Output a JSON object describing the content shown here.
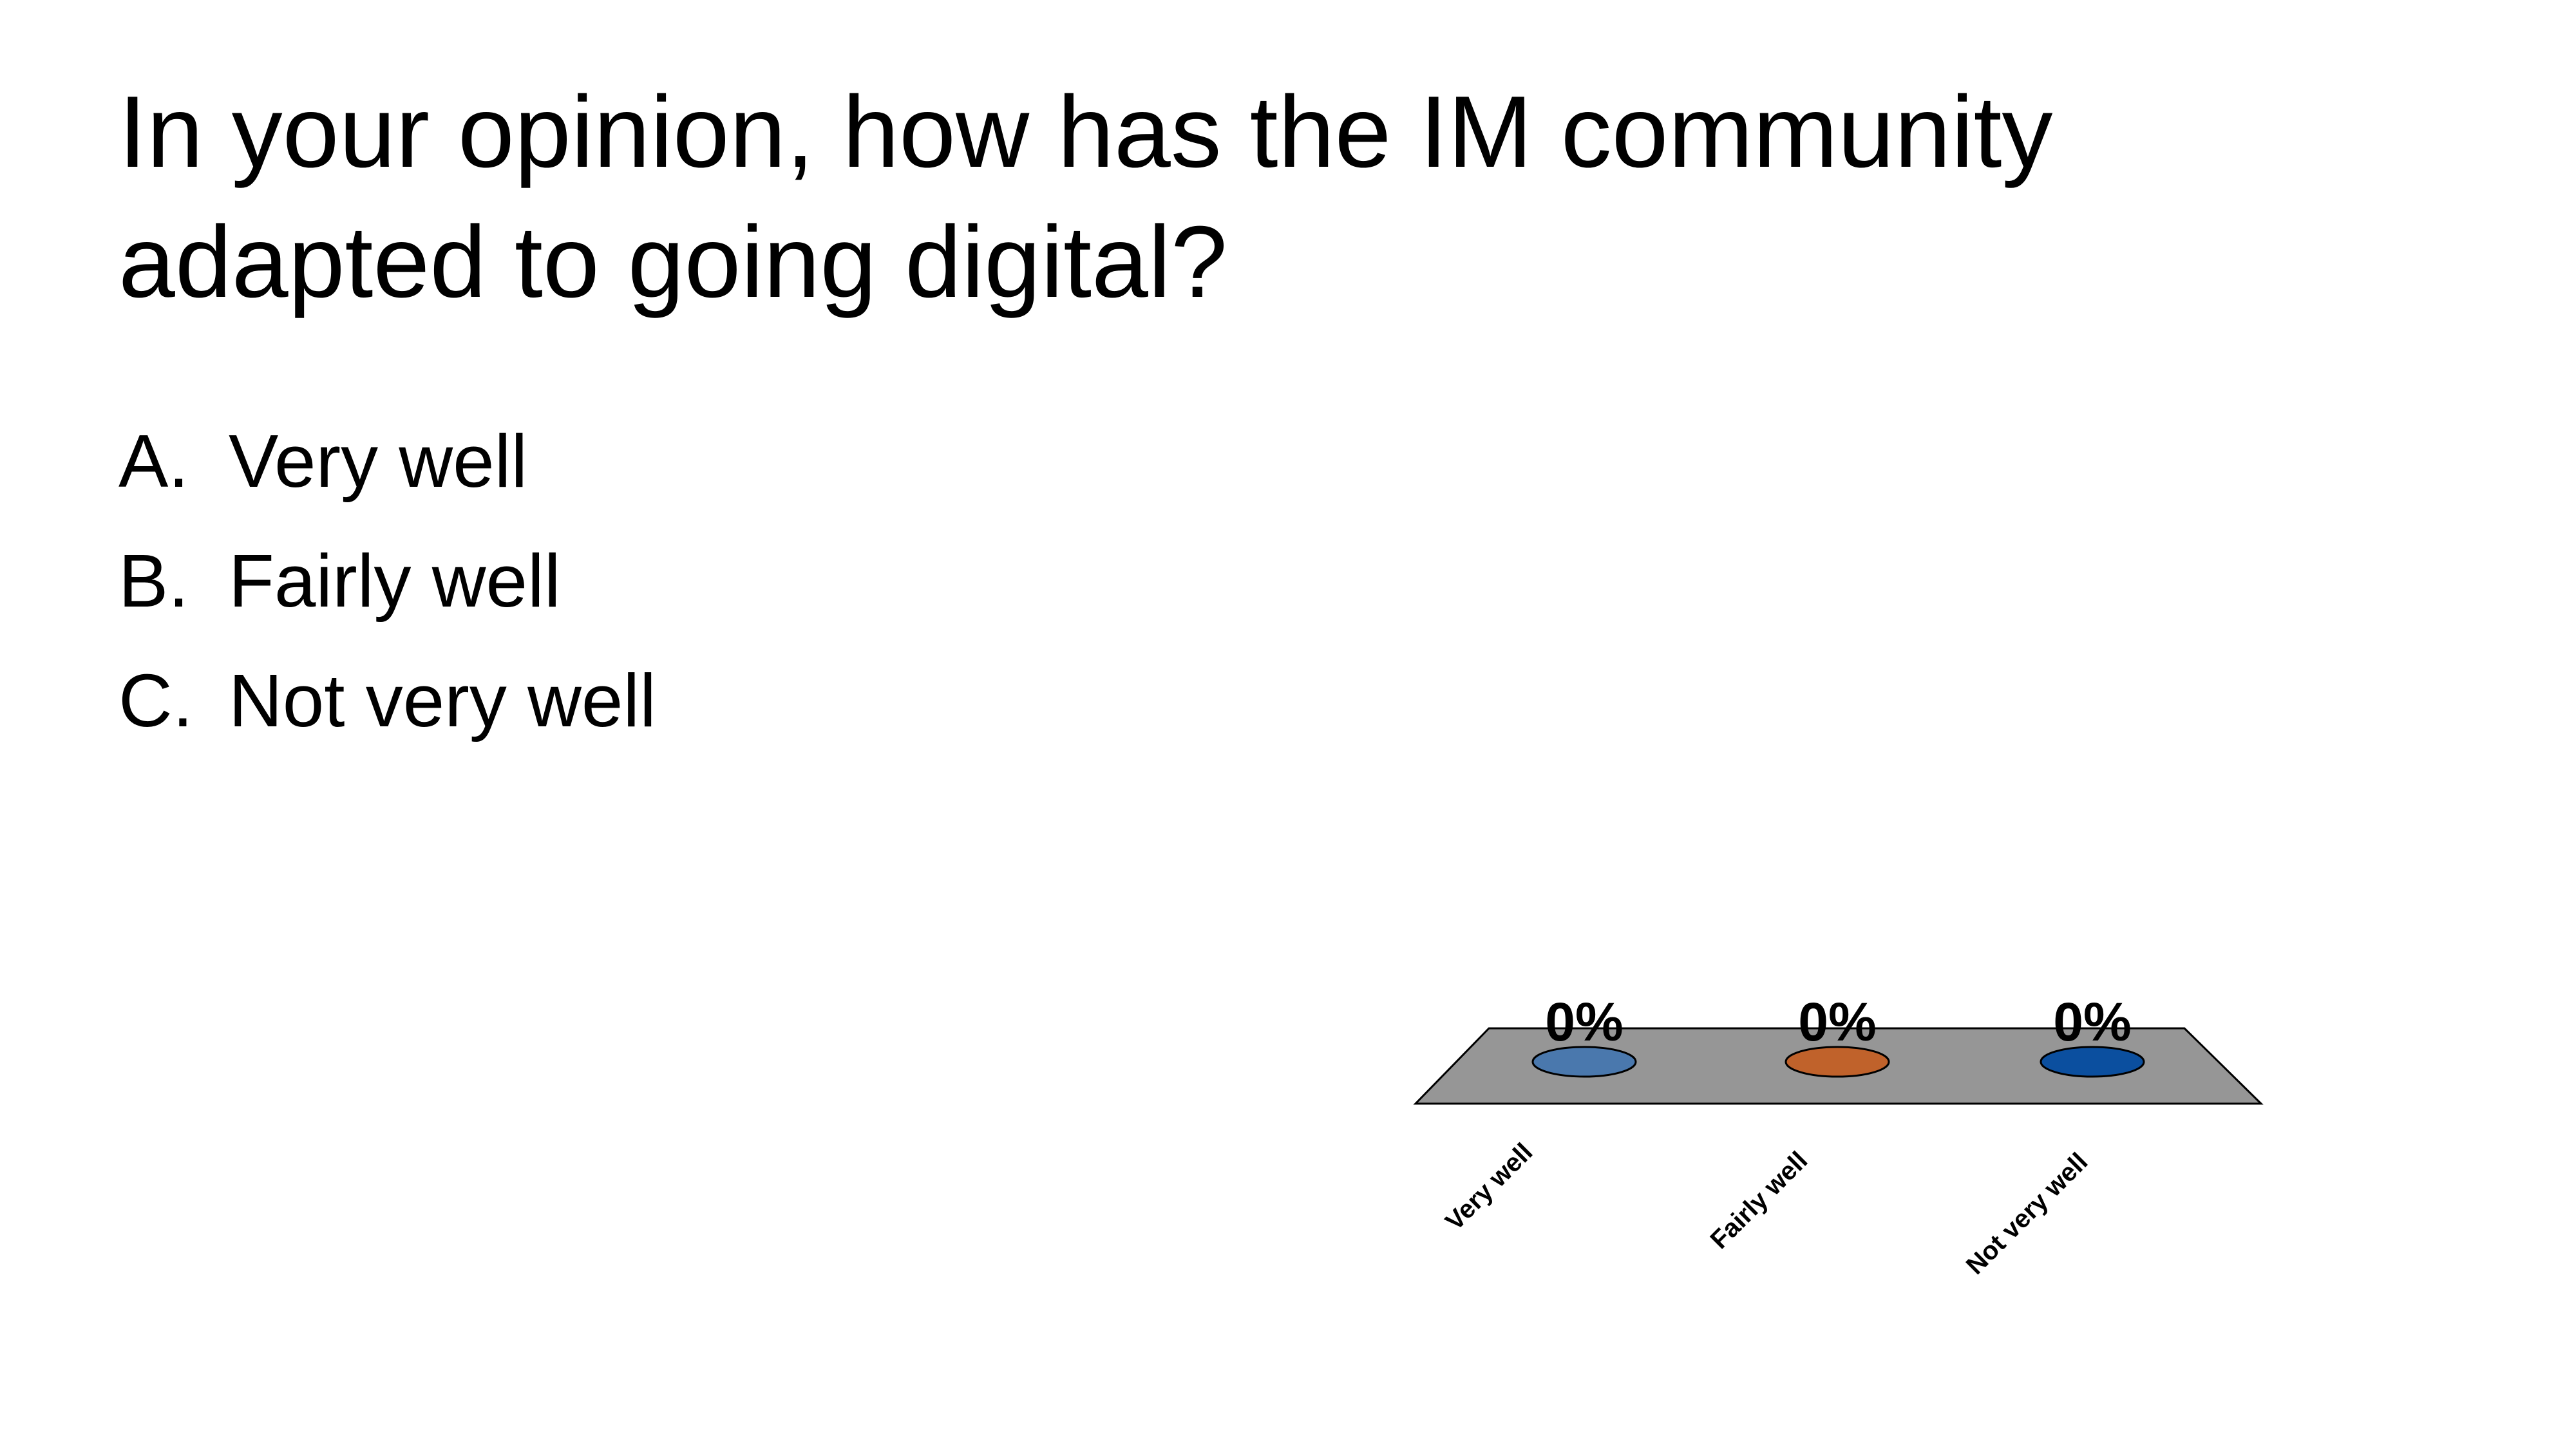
{
  "slide": {
    "title": [
      "In your opinion, how has the IM community",
      "adapted to going digital?"
    ],
    "options": [
      {
        "letter": "A.",
        "text": "Very well"
      },
      {
        "letter": "B.",
        "text": "Fairly well"
      },
      {
        "letter": "C.",
        "text": "Not very well"
      }
    ]
  },
  "chart_data": {
    "type": "bar",
    "categories": [
      "Very well",
      "Fairly well",
      "Not very well"
    ],
    "values": [
      0,
      0,
      0
    ],
    "value_labels": [
      "0%",
      "0%",
      "0%"
    ],
    "colors": [
      "#4a78ad",
      "#c0622b",
      "#0b4f9f"
    ]
  }
}
